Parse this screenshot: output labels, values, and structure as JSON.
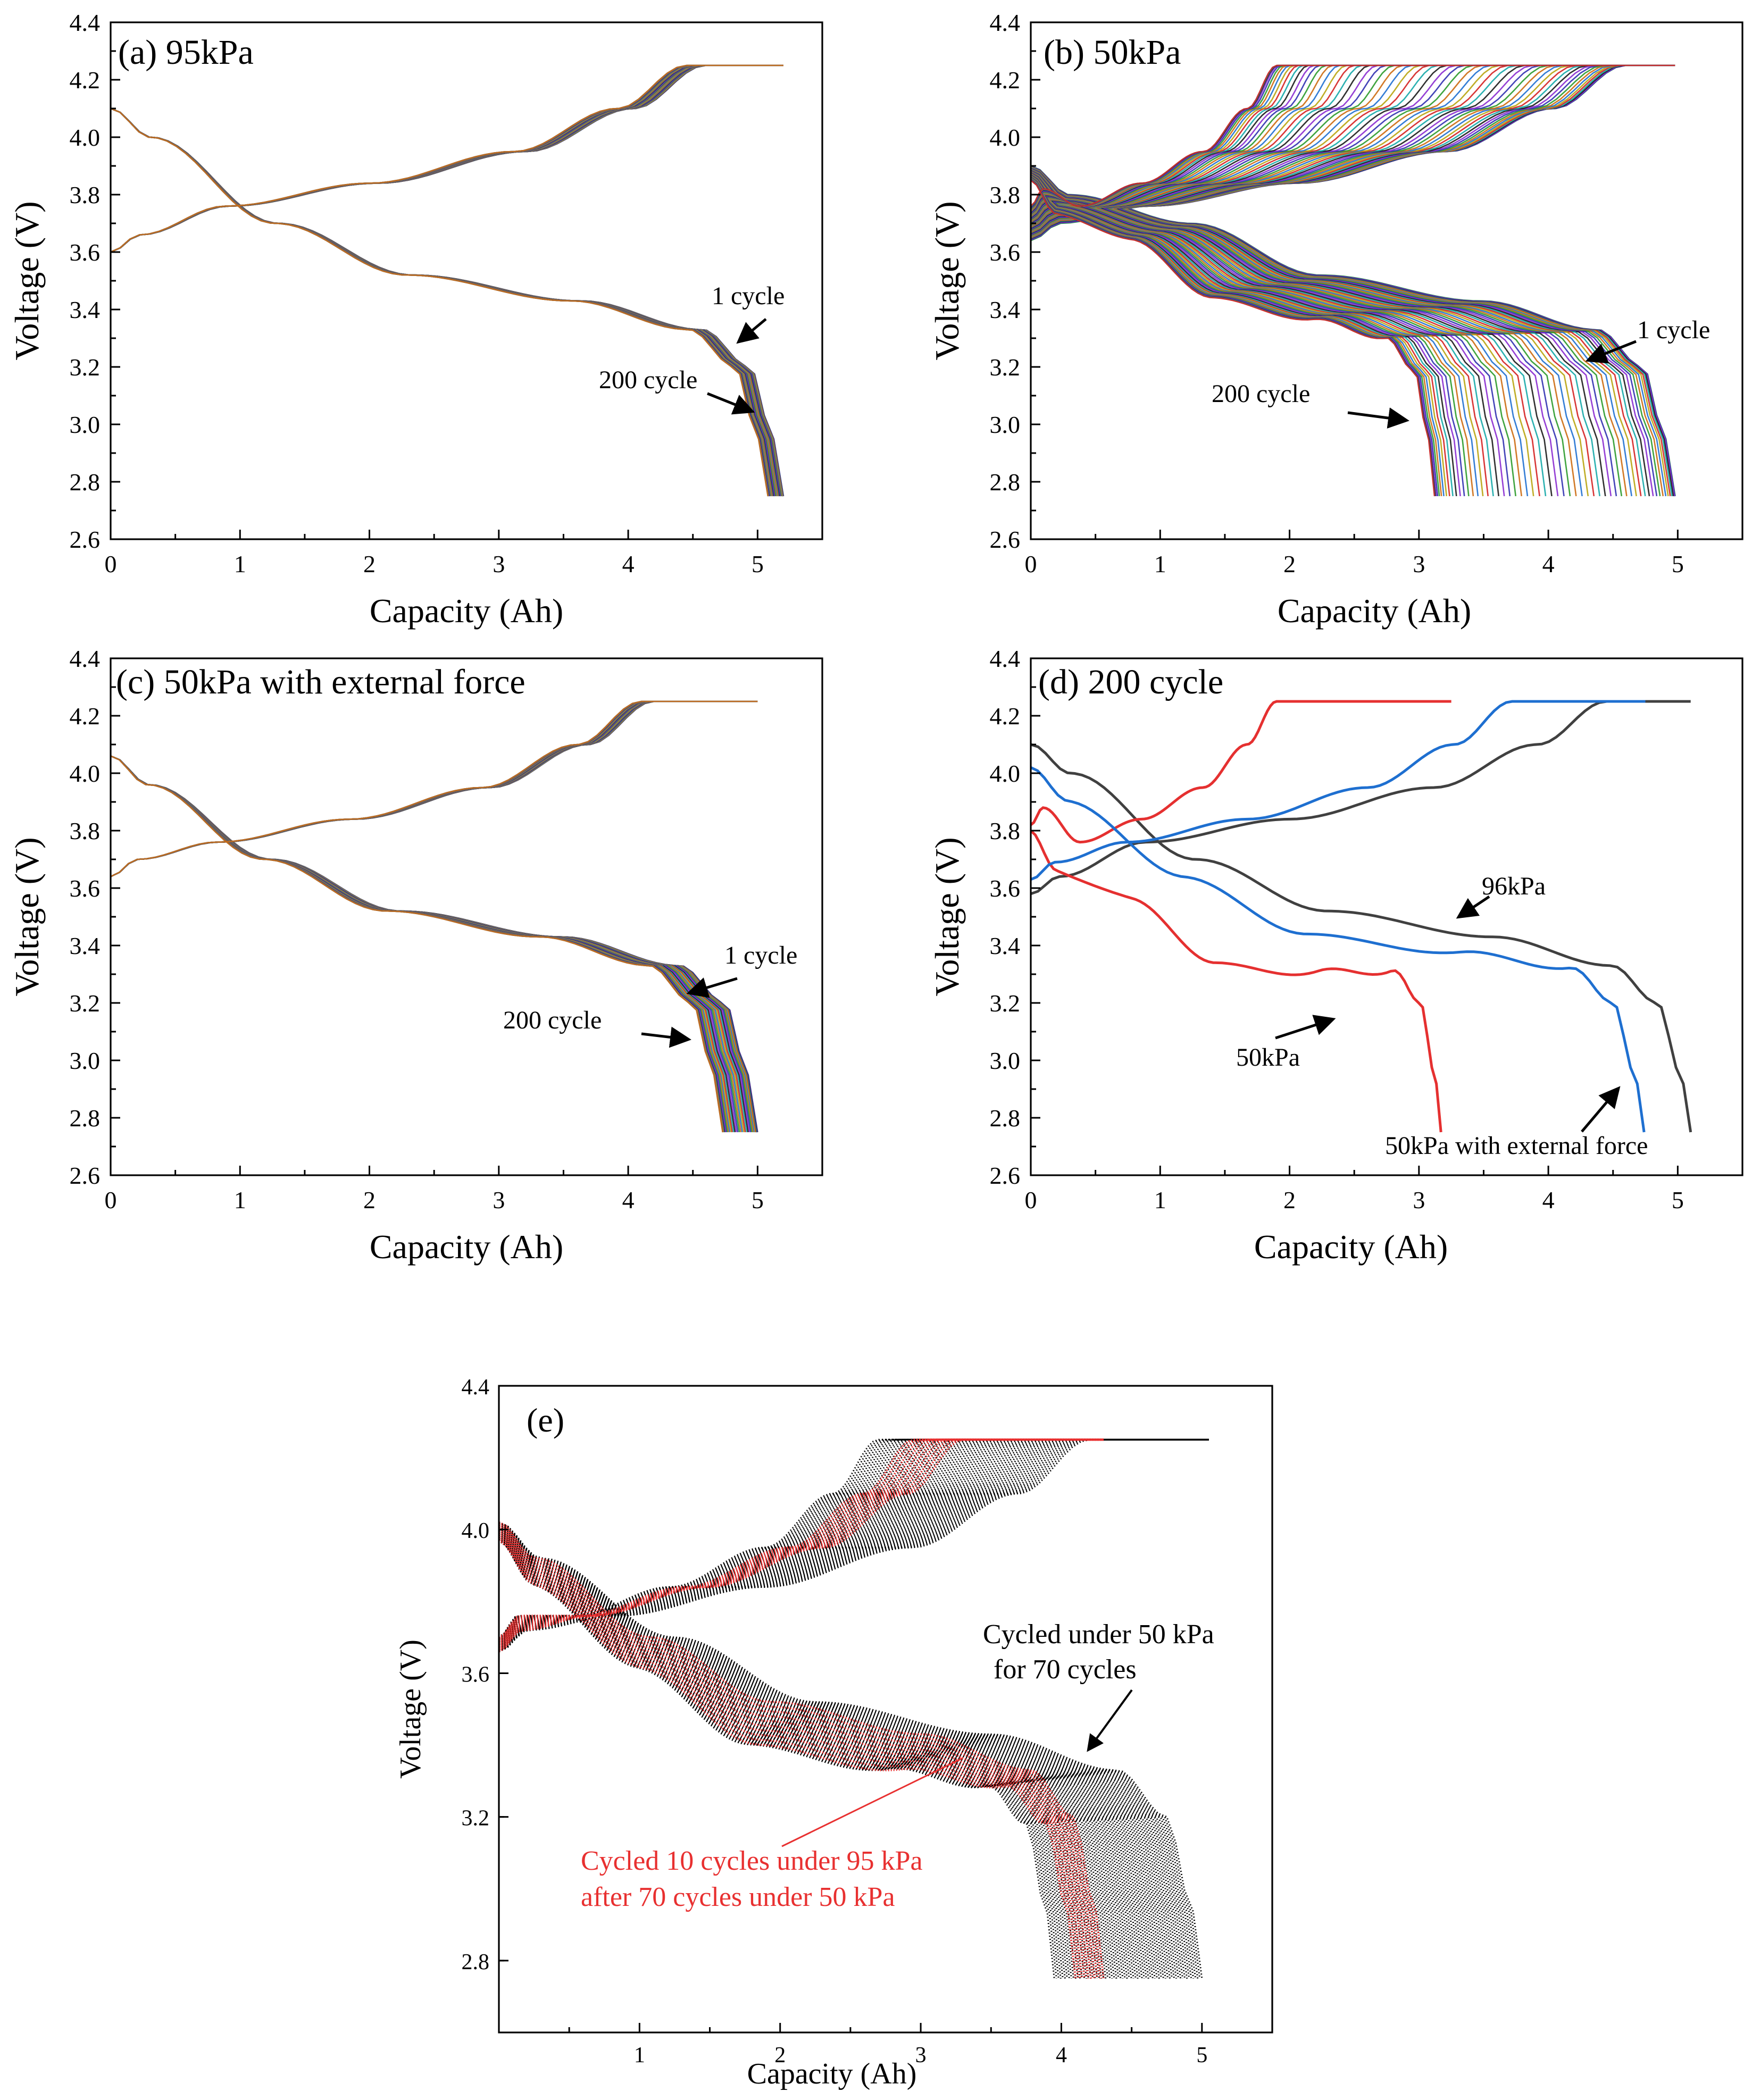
{
  "colors": {
    "palette": [
      "#1a1a1a",
      "#d42020",
      "#1e6fd0",
      "#2a9a2a",
      "#8a2bd0",
      "#15a8a8",
      "#b8a410",
      "#cc6a10",
      "#3030b0"
    ],
    "d_96kPa": "#404040",
    "d_50kPa": "#e53030",
    "d_50kPa_ext": "#1e6fd0",
    "e_black": "#000000",
    "e_red": "#e83030"
  },
  "chart_data": [
    {
      "id": "a",
      "type": "line",
      "title": "(a) 95kPa",
      "xlabel": "Capacity (Ah)",
      "ylabel": "Voltage (V)",
      "xlim": [
        0,
        5.5
      ],
      "ylim": [
        2.6,
        4.4
      ],
      "xticks": [
        0,
        1,
        2,
        3,
        4,
        5
      ],
      "yticks": [
        2.6,
        2.8,
        3.0,
        3.2,
        3.4,
        3.6,
        3.8,
        4.0,
        4.2,
        4.4
      ],
      "series_count": 200,
      "charge_start_v": 3.6,
      "charge_cc_end_capacity": [
        4.45,
        4.6
      ],
      "cv_end_capacity": 5.2,
      "discharge_start_v": 4.1,
      "discharge_end_capacity": [
        5.08,
        5.2
      ],
      "discharge_end_v": 2.75,
      "annotations": [
        "1 cycle",
        "200 cycle"
      ]
    },
    {
      "id": "b",
      "type": "line",
      "title": "(b) 50kPa",
      "xlabel": "Capacity (Ah)",
      "ylabel": "Voltage (V)",
      "xlim": [
        0,
        5.5
      ],
      "ylim": [
        2.6,
        4.4
      ],
      "xticks": [
        0,
        1,
        2,
        3,
        4,
        5
      ],
      "yticks": [
        2.6,
        2.8,
        3.0,
        3.2,
        3.4,
        3.6,
        3.8,
        4.0,
        4.2,
        4.4
      ],
      "series_count": 200,
      "charge_start_v": 3.7,
      "charge_cc_end_capacity": [
        1.9,
        4.6
      ],
      "cv_end_capacity": 4.98,
      "discharge_start_v": 3.9,
      "discharge_end_capacity": [
        3.12,
        4.98
      ],
      "discharge_end_v": 2.75,
      "annotations": [
        "1 cycle",
        "200 cycle"
      ]
    },
    {
      "id": "c",
      "type": "line",
      "title": "(c) 50kPa with external force",
      "xlabel": "Capacity (Ah)",
      "ylabel": "Voltage (V)",
      "xlim": [
        0,
        5.5
      ],
      "ylim": [
        2.6,
        4.4
      ],
      "xticks": [
        0,
        1,
        2,
        3,
        4,
        5
      ],
      "yticks": [
        2.6,
        2.8,
        3.0,
        3.2,
        3.4,
        3.6,
        3.8,
        4.0,
        4.2,
        4.4
      ],
      "series_count": 200,
      "charge_start_v": 3.64,
      "charge_cc_end_capacity": [
        4.1,
        4.2
      ],
      "cv_end_capacity": 5.0,
      "discharge_start_v": 4.06,
      "discharge_end_capacity": [
        4.73,
        5.0
      ],
      "discharge_end_v": 2.75,
      "annotations": [
        "1 cycle",
        "200 cycle"
      ]
    },
    {
      "id": "d",
      "type": "line",
      "title": "(d) 200 cycle",
      "xlabel": "Capacity (Ah)",
      "ylabel": "Voltage (V)",
      "xlim": [
        0,
        5.5
      ],
      "ylim": [
        2.6,
        4.4
      ],
      "xticks": [
        0,
        1,
        2,
        3,
        4,
        5
      ],
      "yticks": [
        2.6,
        2.8,
        3.0,
        3.2,
        3.4,
        3.6,
        3.8,
        4.0,
        4.2,
        4.4
      ],
      "series": [
        {
          "name": "96kPa",
          "charge_start_v": 3.58,
          "charge_cc_end_capacity": 4.45,
          "cv_end_capacity": 5.1,
          "discharge_start_v": 4.1,
          "discharge_end_capacity": 5.1
        },
        {
          "name": "50kPa",
          "charge_start_v": 3.82,
          "charge_cc_end_capacity": 1.9,
          "cv_end_capacity": 3.25,
          "discharge_start_v": 3.8,
          "discharge_end_capacity": 3.17
        },
        {
          "name": "50kPa with external force",
          "charge_start_v": 3.63,
          "charge_cc_end_capacity": 3.72,
          "cv_end_capacity": 4.75,
          "discharge_start_v": 4.02,
          "discharge_end_capacity": 4.74
        }
      ],
      "annotations": [
        "96kPa",
        "50kPa",
        "50kPa with external force"
      ]
    },
    {
      "id": "e",
      "type": "scatter",
      "title": "(e)",
      "xlabel": "Capacity (Ah)",
      "ylabel": "Voltage (V)",
      "xlim": [
        0,
        5.5
      ],
      "ylim": [
        2.6,
        4.4
      ],
      "xticks": [
        1,
        2,
        3,
        4,
        5
      ],
      "yticks": [
        2.8,
        3.2,
        3.6,
        4.0,
        4.4
      ],
      "series": [
        {
          "name": "Cycled under 50 kPa for 70 cycles",
          "count": 70,
          "charge_cc_end_capacity": [
            2.7,
            4.2
          ],
          "cv_end_capacity": 5.05,
          "discharge_end_capacity": [
            3.95,
            5.0
          ]
        },
        {
          "name": "Cycled 10 cycles under 95 kPa after 70 cycles under 50 kPa",
          "count": 10,
          "charge_cc_end_capacity": [
            2.95,
            3.3
          ],
          "cv_end_capacity": 4.3,
          "discharge_end_capacity": [
            4.1,
            4.3
          ]
        }
      ],
      "annotations": [
        "Cycled under 50 kPa",
        "for 70 cycles",
        "Cycled 10 cycles under 95 kPa",
        "after 70 cycles under 50 kPa"
      ]
    }
  ]
}
